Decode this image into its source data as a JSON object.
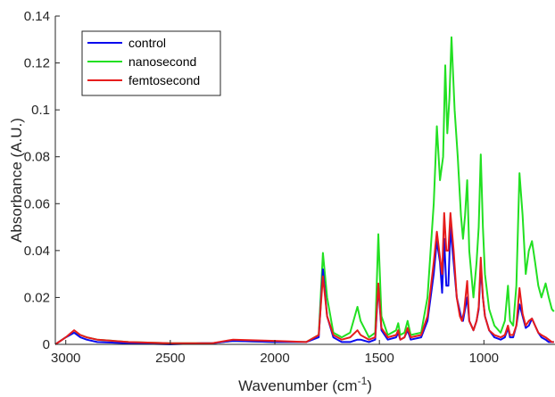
{
  "chart_data": {
    "type": "line",
    "title": "",
    "xlabel": "Wavenumber (cm",
    "xlabel_sup": "-1",
    "xlabel_close": ")",
    "ylabel": "Absorbance (A.U.)",
    "x_reversed": true,
    "xlim": [
      3050,
      660
    ],
    "ylim": [
      0,
      0.14
    ],
    "grid": false,
    "legend_position": "top-left",
    "x_ticks": [
      3000,
      2500,
      2000,
      1500,
      1000
    ],
    "x_tick_labels": [
      "3000",
      "2500",
      "2000",
      "1500",
      "1000"
    ],
    "y_ticks": [
      0,
      0.02,
      0.04,
      0.06,
      0.08,
      0.1,
      0.12,
      0.14
    ],
    "y_tick_labels": [
      "0",
      "0.02",
      "0.04",
      "0.06",
      "0.08",
      "0.1",
      "0.12",
      "0.14"
    ],
    "series": [
      {
        "name": "nanosecond",
        "color": "#22e022",
        "points": [
          [
            3050,
            0
          ],
          [
            3000,
            0.003
          ],
          [
            2960,
            0.005
          ],
          [
            2930,
            0.004
          ],
          [
            2900,
            0.003
          ],
          [
            2850,
            0.002
          ],
          [
            2700,
            0.001
          ],
          [
            2500,
            0.0005
          ],
          [
            2300,
            0.0005
          ],
          [
            2200,
            0.0015
          ],
          [
            2000,
            0.001
          ],
          [
            1850,
            0.001
          ],
          [
            1790,
            0.004
          ],
          [
            1770,
            0.039
          ],
          [
            1750,
            0.02
          ],
          [
            1720,
            0.005
          ],
          [
            1680,
            0.003
          ],
          [
            1640,
            0.005
          ],
          [
            1605,
            0.016
          ],
          [
            1590,
            0.01
          ],
          [
            1550,
            0.003
          ],
          [
            1520,
            0.005
          ],
          [
            1505,
            0.047
          ],
          [
            1490,
            0.012
          ],
          [
            1460,
            0.004
          ],
          [
            1420,
            0.006
          ],
          [
            1410,
            0.009
          ],
          [
            1400,
            0.004
          ],
          [
            1380,
            0.005
          ],
          [
            1365,
            0.01
          ],
          [
            1350,
            0.004
          ],
          [
            1300,
            0.005
          ],
          [
            1270,
            0.02
          ],
          [
            1240,
            0.06
          ],
          [
            1225,
            0.093
          ],
          [
            1210,
            0.07
          ],
          [
            1195,
            0.08
          ],
          [
            1185,
            0.119
          ],
          [
            1175,
            0.09
          ],
          [
            1165,
            0.105
          ],
          [
            1155,
            0.131
          ],
          [
            1140,
            0.1
          ],
          [
            1125,
            0.08
          ],
          [
            1110,
            0.055
          ],
          [
            1100,
            0.045
          ],
          [
            1090,
            0.055
          ],
          [
            1080,
            0.07
          ],
          [
            1070,
            0.04
          ],
          [
            1050,
            0.02
          ],
          [
            1035,
            0.035
          ],
          [
            1025,
            0.05
          ],
          [
            1015,
            0.081
          ],
          [
            1005,
            0.05
          ],
          [
            995,
            0.03
          ],
          [
            975,
            0.015
          ],
          [
            950,
            0.008
          ],
          [
            920,
            0.005
          ],
          [
            900,
            0.01
          ],
          [
            885,
            0.025
          ],
          [
            875,
            0.01
          ],
          [
            860,
            0.008
          ],
          [
            845,
            0.025
          ],
          [
            830,
            0.073
          ],
          [
            815,
            0.055
          ],
          [
            800,
            0.03
          ],
          [
            785,
            0.04
          ],
          [
            770,
            0.044
          ],
          [
            755,
            0.035
          ],
          [
            740,
            0.025
          ],
          [
            725,
            0.02
          ],
          [
            705,
            0.026
          ],
          [
            690,
            0.02
          ],
          [
            675,
            0.015
          ],
          [
            665,
            0.014
          ]
        ]
      },
      {
        "name": "control",
        "color": "#0a0aee",
        "points": [
          [
            3050,
            0
          ],
          [
            3000,
            0.003
          ],
          [
            2960,
            0.005
          ],
          [
            2930,
            0.003
          ],
          [
            2900,
            0.002
          ],
          [
            2850,
            0.001
          ],
          [
            2700,
            0.0005
          ],
          [
            2500,
            0
          ],
          [
            2350,
            0.0005
          ],
          [
            2300,
            0.0005
          ],
          [
            2200,
            0.0015
          ],
          [
            2000,
            0.001
          ],
          [
            1850,
            0.001
          ],
          [
            1790,
            0.003
          ],
          [
            1770,
            0.032
          ],
          [
            1750,
            0.012
          ],
          [
            1720,
            0.003
          ],
          [
            1680,
            0.001
          ],
          [
            1640,
            0.001
          ],
          [
            1605,
            0.002
          ],
          [
            1590,
            0.002
          ],
          [
            1550,
            0.001
          ],
          [
            1520,
            0.002
          ],
          [
            1505,
            0.025
          ],
          [
            1490,
            0.006
          ],
          [
            1460,
            0.002
          ],
          [
            1420,
            0.003
          ],
          [
            1410,
            0.005
          ],
          [
            1400,
            0.002
          ],
          [
            1380,
            0.003
          ],
          [
            1365,
            0.006
          ],
          [
            1350,
            0.002
          ],
          [
            1300,
            0.003
          ],
          [
            1270,
            0.01
          ],
          [
            1240,
            0.03
          ],
          [
            1225,
            0.044
          ],
          [
            1210,
            0.035
          ],
          [
            1200,
            0.022
          ],
          [
            1190,
            0.045
          ],
          [
            1180,
            0.025
          ],
          [
            1170,
            0.025
          ],
          [
            1160,
            0.05
          ],
          [
            1145,
            0.035
          ],
          [
            1130,
            0.02
          ],
          [
            1110,
            0.012
          ],
          [
            1100,
            0.01
          ],
          [
            1090,
            0.015
          ],
          [
            1080,
            0.02
          ],
          [
            1070,
            0.01
          ],
          [
            1050,
            0.006
          ],
          [
            1035,
            0.01
          ],
          [
            1025,
            0.015
          ],
          [
            1015,
            0.033
          ],
          [
            1005,
            0.02
          ],
          [
            995,
            0.012
          ],
          [
            975,
            0.006
          ],
          [
            950,
            0.003
          ],
          [
            920,
            0.002
          ],
          [
            900,
            0.003
          ],
          [
            885,
            0.007
          ],
          [
            875,
            0.003
          ],
          [
            860,
            0.003
          ],
          [
            845,
            0.008
          ],
          [
            830,
            0.017
          ],
          [
            815,
            0.012
          ],
          [
            800,
            0.007
          ],
          [
            785,
            0.008
          ],
          [
            770,
            0.011
          ],
          [
            755,
            0.008
          ],
          [
            740,
            0.005
          ],
          [
            725,
            0.003
          ],
          [
            705,
            0.002
          ],
          [
            690,
            0.001
          ],
          [
            675,
            0.001
          ],
          [
            665,
            0.001
          ]
        ]
      },
      {
        "name": "femtosecond",
        "color": "#e61c1c",
        "points": [
          [
            3050,
            0
          ],
          [
            3000,
            0.003
          ],
          [
            2960,
            0.006
          ],
          [
            2930,
            0.004
          ],
          [
            2900,
            0.003
          ],
          [
            2850,
            0.002
          ],
          [
            2700,
            0.001
          ],
          [
            2500,
            0.0005
          ],
          [
            2300,
            0.0005
          ],
          [
            2200,
            0.002
          ],
          [
            2000,
            0.0015
          ],
          [
            1850,
            0.001
          ],
          [
            1790,
            0.004
          ],
          [
            1770,
            0.029
          ],
          [
            1750,
            0.012
          ],
          [
            1720,
            0.004
          ],
          [
            1680,
            0.002
          ],
          [
            1640,
            0.003
          ],
          [
            1605,
            0.006
          ],
          [
            1590,
            0.004
          ],
          [
            1550,
            0.002
          ],
          [
            1520,
            0.003
          ],
          [
            1505,
            0.026
          ],
          [
            1490,
            0.007
          ],
          [
            1460,
            0.003
          ],
          [
            1420,
            0.004
          ],
          [
            1410,
            0.006
          ],
          [
            1400,
            0.002
          ],
          [
            1380,
            0.003
          ],
          [
            1365,
            0.007
          ],
          [
            1350,
            0.003
          ],
          [
            1300,
            0.004
          ],
          [
            1270,
            0.012
          ],
          [
            1240,
            0.035
          ],
          [
            1225,
            0.048
          ],
          [
            1210,
            0.037
          ],
          [
            1200,
            0.03
          ],
          [
            1190,
            0.056
          ],
          [
            1180,
            0.04
          ],
          [
            1170,
            0.04
          ],
          [
            1160,
            0.056
          ],
          [
            1145,
            0.04
          ],
          [
            1130,
            0.02
          ],
          [
            1115,
            0.012
          ],
          [
            1105,
            0.01
          ],
          [
            1095,
            0.014
          ],
          [
            1080,
            0.027
          ],
          [
            1070,
            0.01
          ],
          [
            1050,
            0.006
          ],
          [
            1035,
            0.01
          ],
          [
            1025,
            0.016
          ],
          [
            1015,
            0.037
          ],
          [
            1005,
            0.02
          ],
          [
            995,
            0.012
          ],
          [
            975,
            0.006
          ],
          [
            950,
            0.004
          ],
          [
            920,
            0.003
          ],
          [
            900,
            0.004
          ],
          [
            885,
            0.008
          ],
          [
            875,
            0.004
          ],
          [
            860,
            0.004
          ],
          [
            845,
            0.008
          ],
          [
            830,
            0.024
          ],
          [
            815,
            0.013
          ],
          [
            800,
            0.008
          ],
          [
            785,
            0.01
          ],
          [
            770,
            0.011
          ],
          [
            755,
            0.008
          ],
          [
            740,
            0.005
          ],
          [
            725,
            0.004
          ],
          [
            705,
            0.003
          ],
          [
            690,
            0.002
          ],
          [
            675,
            0.001
          ],
          [
            665,
            0.001
          ]
        ]
      }
    ],
    "legend_order": [
      "control",
      "nanosecond",
      "femtosecond"
    ]
  }
}
